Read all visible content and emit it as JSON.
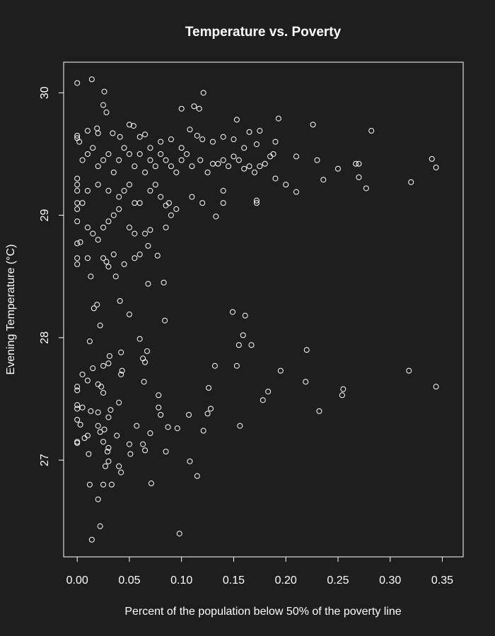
{
  "chart_data": {
    "type": "scatter",
    "title": "Temperature vs. Poverty",
    "x_label": "Percent of the population below 50% of the poverty line",
    "y_label": "Evening Temperature (°C)",
    "background": "#1e1e1e",
    "color": "#ffffff",
    "xlim": [
      -0.013,
      0.37
    ],
    "ylim": [
      26.21,
      30.25
    ],
    "xticks": [
      {
        "value": 0,
        "label": "0.00"
      },
      0.05,
      {
        "value": 0.1,
        "label": "0.10"
      },
      0.15,
      {
        "value": 0.2,
        "label": "0.20"
      },
      0.25,
      {
        "value": 0.3,
        "label": "0.30"
      },
      0.35
    ],
    "yticks": [
      27,
      28,
      29,
      30
    ],
    "x": [
      0,
      0.014,
      0.026,
      0.025,
      0.028,
      0.121,
      0.112,
      0.117,
      0.1,
      0.153,
      0.193,
      0.226,
      0.282,
      0.05,
      0.054,
      0,
      0,
      0.002,
      0.01,
      0.019,
      0.02,
      0.034,
      0.041,
      0.06,
      0.065,
      0.07,
      0.08,
      0.09,
      0.1,
      0.108,
      0.115,
      0.12,
      0.13,
      0.14,
      0.15,
      0.16,
      0.165,
      0.175,
      0.19,
      0.172,
      0.005,
      0.01,
      0.015,
      0.02,
      0.025,
      0.03,
      0.035,
      0.04,
      0.045,
      0.05,
      0.055,
      0.06,
      0.065,
      0.07,
      0.075,
      0.08,
      0.085,
      0.09,
      0.095,
      0.1,
      0.105,
      0.11,
      0.118,
      0.125,
      0.13,
      0.135,
      0.14,
      0.145,
      0.15,
      0.155,
      0.16,
      0.165,
      0.17,
      0.175,
      0.18,
      0.185,
      0.188,
      0.21,
      0.23,
      0.25,
      0.267,
      0.27,
      0.34,
      0.344,
      0.236,
      0.27,
      0.277,
      0.32,
      0.2,
      0.21,
      0.19,
      0,
      0,
      0,
      0,
      0,
      0.003,
      0,
      0,
      0,
      0.01,
      0.015,
      0.02,
      0.025,
      0.03,
      0.035,
      0.04,
      0.05,
      0.055,
      0.065,
      0.068,
      0.07,
      0.06,
      0.055,
      0.045,
      0.028,
      0.03,
      0.025,
      0.035,
      0.01,
      0.077,
      0.085,
      0.095,
      0.11,
      0.12,
      0.133,
      0.14,
      0.14,
      0.172,
      0.172,
      0.08,
      0.088,
      0.09,
      0.085,
      0.068,
      0.083,
      0.013,
      0.037,
      0,
      0.005,
      0.01,
      0.02,
      0.03,
      0.04,
      0.05,
      0.06,
      0.07,
      0.075,
      0.055,
      0.045,
      0.041,
      0.016,
      0.019,
      0.05,
      0.084,
      0.149,
      0.161,
      0.022,
      0.06,
      0.159,
      0.155,
      0.167,
      0.012,
      0.067,
      0.042,
      0.031,
      0.063,
      0.22,
      0.065,
      0.132,
      0.153,
      0.025,
      0.03,
      0.015,
      0.043,
      0.042,
      0.005,
      0.195,
      0.318,
      0.01,
      0.064,
      0.219,
      0.02,
      0,
      0,
      0.023,
      0.025,
      0.126,
      0.183,
      0.255,
      0.254,
      0.344,
      0.178,
      0.078,
      0,
      0,
      0.005,
      0.04,
      0.078,
      0.032,
      0.013,
      0.02,
      0.03,
      0.107,
      0.08,
      0.128,
      0.125,
      0.232,
      0,
      0.003,
      0.02,
      0.026,
      0.022,
      0.057,
      0.07,
      0.087,
      0.096,
      0.121,
      0.156,
      0,
      0.007,
      0.01,
      0.025,
      0.038,
      0.03,
      0.05,
      0.063,
      0,
      0.011,
      0.029,
      0.051,
      0.065,
      0.085,
      0.03,
      0.027,
      0.04,
      0.042,
      0.108,
      0.115,
      0.012,
      0.025,
      0.033,
      0.071,
      0.02,
      0.022,
      0.098,
      0.014
    ],
    "values": [
      30.08,
      30.11,
      30.01,
      29.9,
      29.84,
      30.0,
      29.89,
      29.87,
      29.87,
      29.78,
      29.79,
      29.74,
      29.69,
      29.74,
      29.73,
      29.65,
      29.63,
      29.6,
      29.69,
      29.71,
      29.67,
      29.67,
      29.64,
      29.64,
      29.66,
      29.55,
      29.6,
      29.62,
      29.55,
      29.7,
      29.65,
      29.62,
      29.6,
      29.64,
      29.62,
      29.55,
      29.68,
      29.69,
      29.6,
      29.58,
      29.45,
      29.5,
      29.55,
      29.4,
      29.45,
      29.5,
      29.35,
      29.45,
      29.55,
      29.5,
      29.4,
      29.5,
      29.35,
      29.45,
      29.4,
      29.5,
      29.45,
      29.4,
      29.35,
      29.45,
      29.5,
      29.4,
      29.45,
      29.35,
      29.42,
      29.42,
      29.45,
      29.4,
      29.48,
      29.45,
      29.38,
      29.4,
      29.35,
      29.4,
      29.42,
      29.48,
      29.5,
      29.48,
      29.45,
      29.38,
      29.42,
      29.42,
      29.46,
      29.39,
      29.29,
      29.31,
      29.22,
      29.27,
      29.25,
      29.19,
      29.3,
      29.3,
      29.25,
      29.1,
      29.05,
      28.95,
      28.78,
      28.77,
      28.65,
      28.6,
      28.9,
      28.85,
      28.8,
      28.9,
      28.95,
      29.0,
      29.05,
      28.9,
      28.85,
      28.85,
      28.75,
      28.88,
      28.68,
      28.65,
      28.6,
      28.62,
      28.58,
      28.65,
      28.68,
      28.65,
      28.67,
      28.9,
      29.05,
      29.15,
      29.1,
      28.99,
      29.1,
      29.2,
      29.1,
      29.12,
      29.15,
      29.1,
      29.0,
      29.08,
      28.44,
      28.45,
      28.5,
      28.5,
      29.2,
      29.1,
      29.2,
      29.25,
      29.2,
      29.15,
      29.25,
      29.1,
      29.2,
      29.25,
      29.1,
      29.2,
      28.3,
      28.24,
      28.27,
      28.19,
      28.14,
      28.21,
      28.18,
      28.1,
      27.99,
      28.02,
      27.94,
      27.94,
      27.97,
      27.89,
      27.88,
      27.85,
      27.83,
      27.9,
      27.8,
      27.77,
      27.77,
      27.77,
      27.79,
      27.75,
      27.73,
      27.7,
      27.7,
      27.73,
      27.73,
      27.65,
      27.64,
      27.64,
      27.62,
      27.6,
      27.57,
      27.6,
      27.55,
      27.59,
      27.56,
      27.58,
      27.53,
      27.6,
      27.49,
      27.53,
      27.45,
      27.42,
      27.43,
      27.47,
      27.43,
      27.41,
      27.4,
      27.39,
      27.35,
      27.37,
      27.37,
      27.42,
      27.38,
      27.4,
      27.33,
      27.29,
      27.28,
      27.25,
      27.23,
      27.28,
      27.22,
      27.27,
      27.26,
      27.24,
      27.28,
      27.15,
      27.18,
      27.2,
      27.15,
      27.2,
      27.1,
      27.13,
      27.13,
      27.14,
      27.05,
      27.07,
      27.05,
      27.08,
      27.07,
      26.99,
      26.95,
      26.95,
      26.9,
      26.99,
      26.87,
      26.8,
      26.8,
      26.8,
      26.81,
      26.68,
      26.46,
      26.4,
      26.35
    ]
  }
}
